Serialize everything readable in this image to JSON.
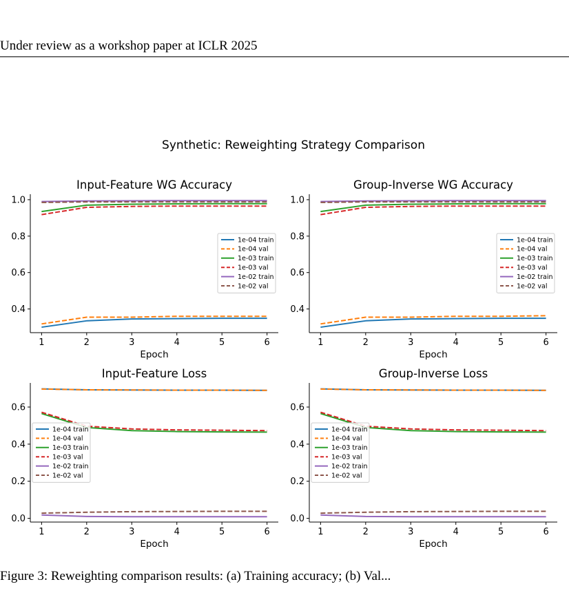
{
  "page": {
    "header": "Under review as a workshop paper at ICLR 2025",
    "caption": "Figure 3: Reweighting comparison results: (a) Training accuracy; (b) Val..."
  },
  "figure": {
    "suptitle": "Synthetic: Reweighting Strategy Comparison"
  },
  "series_colors": {
    "1e-04 train": "#1f77b4",
    "1e-04 val": "#ff7f0e",
    "1e-03 train": "#2ca02c",
    "1e-03 val": "#d62728",
    "1e-02 train": "#9467bd",
    "1e-02 val": "#8c564b"
  },
  "chart_data": [
    {
      "type": "line",
      "title": "Input-Feature WG Accuracy",
      "xlabel": "Epoch",
      "ylabel": "",
      "x": [
        1,
        2,
        3,
        4,
        5,
        6
      ],
      "xlim": [
        0.75,
        6.25
      ],
      "ylim": [
        0.27,
        1.03
      ],
      "yticks": [
        0.4,
        0.6,
        0.8,
        1.0
      ],
      "ytick_labels": [
        "0.4",
        "0.6",
        "0.8",
        "1.0"
      ],
      "xticks": [
        1,
        2,
        3,
        4,
        5,
        6
      ],
      "xtick_labels": [
        "1",
        "2",
        "3",
        "4",
        "5",
        "6"
      ],
      "grid": false,
      "legend": "center-right",
      "series": [
        {
          "name": "1e-04 train",
          "style": "solid",
          "values": [
            0.3,
            0.335,
            0.345,
            0.347,
            0.349,
            0.349
          ]
        },
        {
          "name": "1e-04 val",
          "style": "dashed",
          "values": [
            0.318,
            0.355,
            0.355,
            0.36,
            0.36,
            0.36
          ]
        },
        {
          "name": "1e-03 train",
          "style": "solid",
          "values": [
            0.935,
            0.97,
            0.975,
            0.977,
            0.978,
            0.978
          ]
        },
        {
          "name": "1e-03 val",
          "style": "dashed",
          "values": [
            0.918,
            0.958,
            0.963,
            0.965,
            0.965,
            0.965
          ]
        },
        {
          "name": "1e-02 train",
          "style": "solid",
          "values": [
            0.99,
            0.993,
            0.994,
            0.995,
            0.995,
            0.995
          ]
        },
        {
          "name": "1e-02 val",
          "style": "dashed",
          "values": [
            0.985,
            0.988,
            0.988,
            0.988,
            0.988,
            0.988
          ]
        }
      ]
    },
    {
      "type": "line",
      "title": "Group-Inverse WG Accuracy",
      "xlabel": "Epoch",
      "ylabel": "",
      "x": [
        1,
        2,
        3,
        4,
        5,
        6
      ],
      "xlim": [
        0.75,
        6.25
      ],
      "ylim": [
        0.27,
        1.03
      ],
      "yticks": [
        0.4,
        0.6,
        0.8,
        1.0
      ],
      "ytick_labels": [
        "0.4",
        "0.6",
        "0.8",
        "1.0"
      ],
      "xticks": [
        1,
        2,
        3,
        4,
        5,
        6
      ],
      "xtick_labels": [
        "1",
        "2",
        "3",
        "4",
        "5",
        "6"
      ],
      "grid": false,
      "legend": "center-right",
      "series": [
        {
          "name": "1e-04 train",
          "style": "solid",
          "values": [
            0.3,
            0.335,
            0.345,
            0.347,
            0.349,
            0.349
          ]
        },
        {
          "name": "1e-04 val",
          "style": "dashed",
          "values": [
            0.318,
            0.355,
            0.355,
            0.36,
            0.36,
            0.363
          ]
        },
        {
          "name": "1e-03 train",
          "style": "solid",
          "values": [
            0.935,
            0.97,
            0.975,
            0.977,
            0.978,
            0.978
          ]
        },
        {
          "name": "1e-03 val",
          "style": "dashed",
          "values": [
            0.918,
            0.958,
            0.963,
            0.965,
            0.965,
            0.965
          ]
        },
        {
          "name": "1e-02 train",
          "style": "solid",
          "values": [
            0.99,
            0.993,
            0.994,
            0.995,
            0.995,
            0.995
          ]
        },
        {
          "name": "1e-02 val",
          "style": "dashed",
          "values": [
            0.985,
            0.988,
            0.988,
            0.988,
            0.988,
            0.988
          ]
        }
      ]
    },
    {
      "type": "line",
      "title": "Input-Feature Loss",
      "xlabel": "Epoch",
      "ylabel": "",
      "x": [
        1,
        2,
        3,
        4,
        5,
        6
      ],
      "xlim": [
        0.75,
        6.25
      ],
      "ylim": [
        -0.02,
        0.73
      ],
      "yticks": [
        0.0,
        0.2,
        0.4,
        0.6
      ],
      "ytick_labels": [
        "0.0",
        "0.2",
        "0.4",
        "0.6"
      ],
      "xticks": [
        1,
        2,
        3,
        4,
        5,
        6
      ],
      "xtick_labels": [
        "1",
        "2",
        "3",
        "4",
        "5",
        "6"
      ],
      "grid": false,
      "legend": "center-left",
      "series": [
        {
          "name": "1e-04 train",
          "style": "solid",
          "values": [
            0.698,
            0.693,
            0.692,
            0.691,
            0.691,
            0.69
          ]
        },
        {
          "name": "1e-04 val",
          "style": "dashed",
          "values": [
            0.697,
            0.693,
            0.692,
            0.691,
            0.691,
            0.69
          ]
        },
        {
          "name": "1e-03 train",
          "style": "solid",
          "values": [
            0.565,
            0.49,
            0.473,
            0.468,
            0.466,
            0.465
          ]
        },
        {
          "name": "1e-03 val",
          "style": "dashed",
          "values": [
            0.572,
            0.497,
            0.482,
            0.477,
            0.475,
            0.473
          ]
        },
        {
          "name": "1e-02 train",
          "style": "solid",
          "values": [
            0.018,
            0.01,
            0.009,
            0.009,
            0.009,
            0.009
          ]
        },
        {
          "name": "1e-02 val",
          "style": "dashed",
          "values": [
            0.028,
            0.033,
            0.036,
            0.037,
            0.038,
            0.038
          ]
        }
      ]
    },
    {
      "type": "line",
      "title": "Group-Inverse Loss",
      "xlabel": "Epoch",
      "ylabel": "",
      "x": [
        1,
        2,
        3,
        4,
        5,
        6
      ],
      "xlim": [
        0.75,
        6.25
      ],
      "ylim": [
        -0.02,
        0.73
      ],
      "yticks": [
        0.0,
        0.2,
        0.4,
        0.6
      ],
      "ytick_labels": [
        "0.0",
        "0.2",
        "0.4",
        "0.6"
      ],
      "xticks": [
        1,
        2,
        3,
        4,
        5,
        6
      ],
      "xtick_labels": [
        "1",
        "2",
        "3",
        "4",
        "5",
        "6"
      ],
      "grid": false,
      "legend": "center-left",
      "series": [
        {
          "name": "1e-04 train",
          "style": "solid",
          "values": [
            0.698,
            0.693,
            0.692,
            0.691,
            0.691,
            0.69
          ]
        },
        {
          "name": "1e-04 val",
          "style": "dashed",
          "values": [
            0.697,
            0.693,
            0.692,
            0.691,
            0.691,
            0.69
          ]
        },
        {
          "name": "1e-03 train",
          "style": "solid",
          "values": [
            0.565,
            0.49,
            0.473,
            0.468,
            0.466,
            0.465
          ]
        },
        {
          "name": "1e-03 val",
          "style": "dashed",
          "values": [
            0.572,
            0.497,
            0.482,
            0.477,
            0.475,
            0.473
          ]
        },
        {
          "name": "1e-02 train",
          "style": "solid",
          "values": [
            0.018,
            0.01,
            0.009,
            0.009,
            0.009,
            0.009
          ]
        },
        {
          "name": "1e-02 val",
          "style": "dashed",
          "values": [
            0.028,
            0.033,
            0.036,
            0.037,
            0.038,
            0.038
          ]
        }
      ]
    }
  ]
}
